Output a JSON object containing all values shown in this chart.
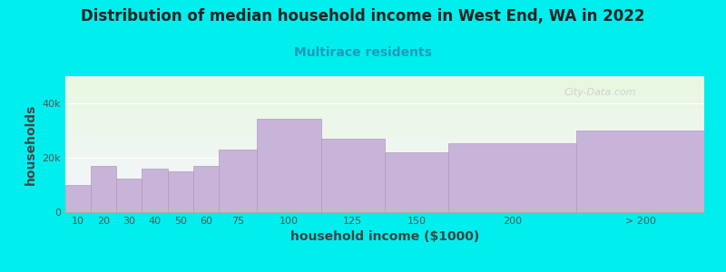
{
  "title": "Distribution of median household income in West End, WA in 2022",
  "subtitle": "Multirace residents",
  "xlabel": "household income ($1000)",
  "ylabel": "households",
  "background_fig": "#00EEEE",
  "bar_color": "#c8b4d8",
  "bar_edge_color": "#b09abe",
  "categories": [
    "10",
    "20",
    "30",
    "40",
    "50",
    "60",
    "75",
    "100",
    "125",
    "150",
    "200",
    "> 200"
  ],
  "values": [
    10000,
    17000,
    12500,
    16000,
    15000,
    17000,
    23000,
    34500,
    27000,
    22000,
    25500,
    30000
  ],
  "bar_lefts": [
    0,
    10,
    20,
    30,
    40,
    50,
    60,
    75,
    100,
    125,
    150,
    200
  ],
  "bar_widths": [
    10,
    10,
    10,
    10,
    10,
    10,
    15,
    25,
    25,
    25,
    50,
    50
  ],
  "yticks": [
    0,
    20000,
    40000
  ],
  "ytick_labels": [
    "0",
    "20k",
    "40k"
  ],
  "ylim": [
    0,
    50000
  ],
  "xlim": [
    0,
    250
  ],
  "title_fontsize": 12,
  "subtitle_fontsize": 10,
  "subtitle_color": "#2299bb",
  "axis_label_fontsize": 10,
  "tick_fontsize": 8,
  "watermark": "City-Data.com",
  "grad_top": "#e8f8e0",
  "grad_bottom": "#f5f5ff",
  "xtick_positions": [
    5,
    15,
    25,
    35,
    45,
    55,
    67.5,
    87.5,
    112.5,
    137.5,
    175,
    225
  ],
  "xtick_labels": [
    "10",
    "20",
    "30",
    "40",
    "50",
    "60",
    "75",
    "100",
    "125",
    "150",
    "200",
    "> 200"
  ]
}
